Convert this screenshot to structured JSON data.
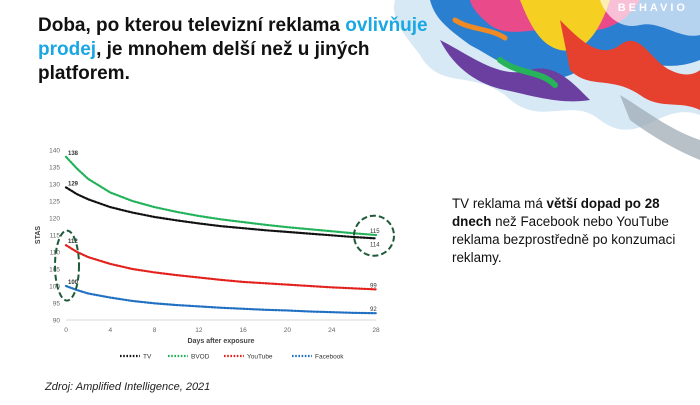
{
  "brand": "BEHAVIO",
  "title": {
    "part1": "Doba, po kterou televizní reklama",
    "highlight": "ovlivňuje prodej",
    "part2": ", je mnohem delší než u jiných platforem."
  },
  "side_text": {
    "t1": "TV reklama má ",
    "b1": "větší dopad po 28 dnech",
    "t2": " než Facebook nebo YouTube reklama bezprostředně po konzumaci reklamy."
  },
  "source": "Zdroj: Amplified Intelligence, 2021",
  "colors": {
    "accent": "#1aa7e3",
    "tv": "#111111",
    "bvod": "#22b35a",
    "youtube": "#e3211c",
    "facebook": "#1f6fc2",
    "highlight_circle": "#1f5a3a"
  },
  "chart_data": {
    "type": "line",
    "xlabel": "Days after exposure",
    "ylabel": "STAS",
    "xlim": [
      0,
      28
    ],
    "ylim": [
      90,
      140
    ],
    "xticks": [
      0,
      4,
      8,
      12,
      16,
      20,
      24,
      28
    ],
    "yticks": [
      90,
      95,
      100,
      105,
      110,
      115,
      120,
      125,
      130,
      135,
      140
    ],
    "legend_position": "bottom",
    "series": [
      {
        "name": "TV",
        "color": "#111111",
        "x": [
          0,
          1,
          2,
          4,
          6,
          8,
          10,
          12,
          14,
          16,
          18,
          20,
          22,
          24,
          26,
          28
        ],
        "values": [
          129,
          127,
          125.5,
          123.2,
          121.6,
          120.3,
          119.3,
          118.4,
          117.6,
          117,
          116.4,
          115.9,
          115.4,
          114.9,
          114.4,
          114
        ],
        "start_label": "129",
        "end_label": "114"
      },
      {
        "name": "BVOD",
        "color": "#22b35a",
        "x": [
          0,
          1,
          2,
          4,
          6,
          8,
          10,
          12,
          14,
          16,
          18,
          20,
          22,
          24,
          26,
          28
        ],
        "values": [
          138,
          134.5,
          131.5,
          127.5,
          125,
          123.2,
          121.8,
          120.6,
          119.6,
          118.8,
          118,
          117.3,
          116.7,
          116.1,
          115.5,
          115
        ],
        "start_label": "138",
        "end_label": "115"
      },
      {
        "name": "YouTube",
        "color": "#e3211c",
        "x": [
          0,
          1,
          2,
          4,
          6,
          8,
          10,
          12,
          14,
          16,
          18,
          20,
          22,
          24,
          26,
          28
        ],
        "values": [
          112,
          110,
          108.5,
          106.5,
          105,
          104,
          103.2,
          102.5,
          101.8,
          101.2,
          100.8,
          100.4,
          100,
          99.6,
          99.3,
          99
        ],
        "start_label": "112",
        "end_label": "99"
      },
      {
        "name": "Facebook",
        "color": "#1f6fc2",
        "x": [
          0,
          1,
          2,
          4,
          6,
          8,
          10,
          12,
          14,
          16,
          18,
          20,
          22,
          24,
          26,
          28
        ],
        "values": [
          100,
          98.8,
          97.8,
          96.6,
          95.6,
          94.9,
          94.4,
          94,
          93.6,
          93.3,
          93,
          92.8,
          92.5,
          92.3,
          92.1,
          92
        ],
        "start_label": "100",
        "end_label": "92"
      }
    ],
    "annotations": [
      "circle around day-0 values of YouTube and Facebook",
      "circle around day-28 values of TV and BVOD"
    ]
  }
}
